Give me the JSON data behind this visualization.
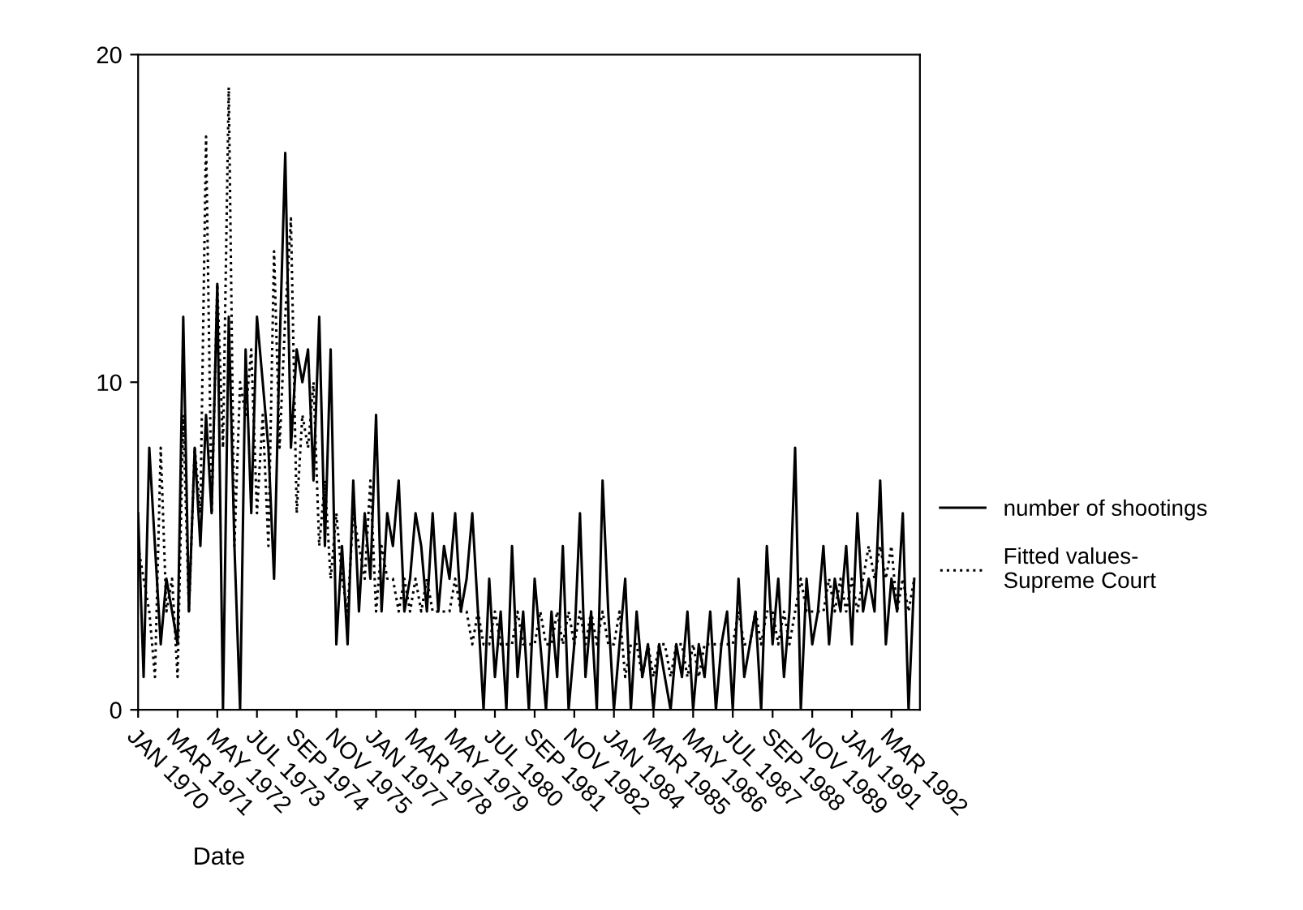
{
  "chart_data": {
    "type": "line",
    "xlabel": "Date",
    "x": [
      "1970-01",
      "1970-03",
      "1970-05",
      "1970-07",
      "1970-09",
      "1970-11",
      "1971-01",
      "1971-03",
      "1971-05",
      "1971-07",
      "1971-09",
      "1971-11",
      "1972-01",
      "1972-03",
      "1972-05",
      "1972-07",
      "1972-09",
      "1972-11",
      "1973-01",
      "1973-03",
      "1973-05",
      "1973-07",
      "1973-09",
      "1973-11",
      "1974-01",
      "1974-03",
      "1974-05",
      "1974-07",
      "1974-09",
      "1974-11",
      "1975-01",
      "1975-03",
      "1975-05",
      "1975-07",
      "1975-09",
      "1975-11",
      "1976-01",
      "1976-03",
      "1976-05",
      "1976-07",
      "1976-09",
      "1976-11",
      "1977-01",
      "1977-03",
      "1977-05",
      "1977-07",
      "1977-09",
      "1977-11",
      "1978-01",
      "1978-03",
      "1978-05",
      "1978-07",
      "1978-09",
      "1978-11",
      "1979-01",
      "1979-03",
      "1979-05",
      "1979-07",
      "1979-09",
      "1979-11",
      "1980-01",
      "1980-03",
      "1980-05",
      "1980-07",
      "1980-09",
      "1980-11",
      "1981-01",
      "1981-03",
      "1981-05",
      "1981-07",
      "1981-09",
      "1981-11",
      "1982-01",
      "1982-03",
      "1982-05",
      "1982-07",
      "1982-09",
      "1982-11",
      "1983-01",
      "1983-03",
      "1983-05",
      "1983-07",
      "1983-09",
      "1983-11",
      "1984-01",
      "1984-03",
      "1984-05",
      "1984-07",
      "1984-09",
      "1984-11",
      "1985-01",
      "1985-03",
      "1985-05",
      "1985-07",
      "1985-09",
      "1985-11",
      "1986-01",
      "1986-03",
      "1986-05",
      "1986-07",
      "1986-09",
      "1986-11",
      "1987-01",
      "1987-03",
      "1987-05",
      "1987-07",
      "1987-09",
      "1987-11",
      "1988-01",
      "1988-03",
      "1988-05",
      "1988-07",
      "1988-09",
      "1988-11",
      "1989-01",
      "1989-03",
      "1989-05",
      "1989-07",
      "1989-09",
      "1989-11",
      "1990-01",
      "1990-03",
      "1990-05",
      "1990-07",
      "1990-09",
      "1990-11",
      "1991-01",
      "1991-03",
      "1991-05",
      "1991-07",
      "1991-09",
      "1991-11",
      "1992-01",
      "1992-03",
      "1992-05",
      "1992-07",
      "1992-09",
      "1992-11"
    ],
    "series": [
      {
        "name": "number of shootings",
        "color": "#000000",
        "line_style": "solid",
        "values": [
          6,
          1,
          8,
          5,
          2,
          4,
          3,
          2,
          12,
          3,
          8,
          5,
          9,
          6,
          13,
          0,
          12,
          5,
          0,
          11,
          6,
          12,
          10,
          8,
          4,
          11,
          17,
          8,
          11,
          10,
          11,
          7,
          12,
          5,
          11,
          2,
          5,
          2,
          7,
          3,
          6,
          4,
          9,
          3,
          6,
          5,
          7,
          3,
          4,
          6,
          5,
          3,
          6,
          3,
          5,
          4,
          6,
          3,
          4,
          6,
          3,
          0,
          4,
          1,
          3,
          0,
          5,
          1,
          3,
          0,
          4,
          2,
          0,
          3,
          1,
          5,
          0,
          2,
          6,
          1,
          3,
          0,
          7,
          3,
          0,
          2,
          4,
          0,
          3,
          1,
          2,
          0,
          2,
          1,
          0,
          2,
          1,
          3,
          0,
          2,
          1,
          3,
          0,
          2,
          3,
          0,
          4,
          1,
          2,
          3,
          0,
          5,
          2,
          4,
          1,
          3,
          8,
          0,
          4,
          2,
          3,
          5,
          2,
          4,
          3,
          5,
          2,
          6,
          3,
          4,
          3,
          7,
          2,
          4,
          3,
          6,
          0,
          4
        ]
      },
      {
        "name": "Fitted values-\nSupreme Court",
        "color": "#000000",
        "line_style": "dotted",
        "values": [
          5,
          4,
          3,
          1,
          8,
          3,
          4,
          1,
          9,
          3,
          8,
          6,
          17.5,
          6,
          13,
          8,
          19,
          5,
          10,
          9,
          11,
          6,
          9,
          5,
          14,
          8,
          12,
          15,
          6,
          9,
          8,
          10,
          5,
          7,
          4,
          6,
          4,
          3,
          6,
          5,
          4,
          7,
          3,
          5,
          4,
          4,
          3,
          4,
          3,
          4,
          3,
          4,
          3,
          3,
          3,
          3,
          4,
          3,
          3,
          2,
          3,
          2,
          2,
          3,
          2,
          2,
          2,
          3,
          2,
          2,
          2,
          3,
          2,
          2,
          3,
          2,
          3,
          2,
          3,
          2,
          3,
          2,
          3,
          2,
          2,
          3,
          1,
          2,
          2,
          1,
          2,
          1,
          2,
          2,
          1,
          2,
          2,
          1,
          2,
          1,
          2,
          2,
          2,
          2,
          2,
          2,
          3,
          2,
          2,
          3,
          2,
          3,
          3,
          2,
          3,
          2,
          3,
          4,
          3,
          3,
          3,
          3,
          4,
          3,
          4,
          3,
          4,
          3,
          4,
          5,
          4,
          5,
          4,
          5,
          3,
          4,
          3,
          4
        ]
      }
    ],
    "xlim": [
      "1970-01",
      "1993-01"
    ],
    "xticks": [
      {
        "value": "1970-01",
        "label": "JAN 1970"
      },
      {
        "value": "1971-03",
        "label": "MAR 1971"
      },
      {
        "value": "1972-05",
        "label": "MAY 1972"
      },
      {
        "value": "1973-07",
        "label": "JUL 1973"
      },
      {
        "value": "1974-09",
        "label": "SEP 1974"
      },
      {
        "value": "1975-11",
        "label": "NOV 1975"
      },
      {
        "value": "1977-01",
        "label": "JAN 1977"
      },
      {
        "value": "1978-03",
        "label": "MAR 1978"
      },
      {
        "value": "1979-05",
        "label": "MAY 1979"
      },
      {
        "value": "1980-07",
        "label": "JUL 1980"
      },
      {
        "value": "1981-09",
        "label": "SEP 1981"
      },
      {
        "value": "1982-11",
        "label": "NOV 1982"
      },
      {
        "value": "1984-01",
        "label": "JAN 1984"
      },
      {
        "value": "1985-03",
        "label": "MAR 1985"
      },
      {
        "value": "1986-05",
        "label": "MAY 1986"
      },
      {
        "value": "1987-07",
        "label": "JUL 1987"
      },
      {
        "value": "1988-09",
        "label": "SEP 1988"
      },
      {
        "value": "1989-11",
        "label": "NOV 1989"
      },
      {
        "value": "1991-01",
        "label": "JAN 1991"
      },
      {
        "value": "1992-03",
        "label": "MAR 1992"
      }
    ],
    "ylim": [
      0,
      20
    ],
    "yticks": [
      0,
      10,
      20
    ],
    "grid": false,
    "legend": "right",
    "marker": "none"
  }
}
